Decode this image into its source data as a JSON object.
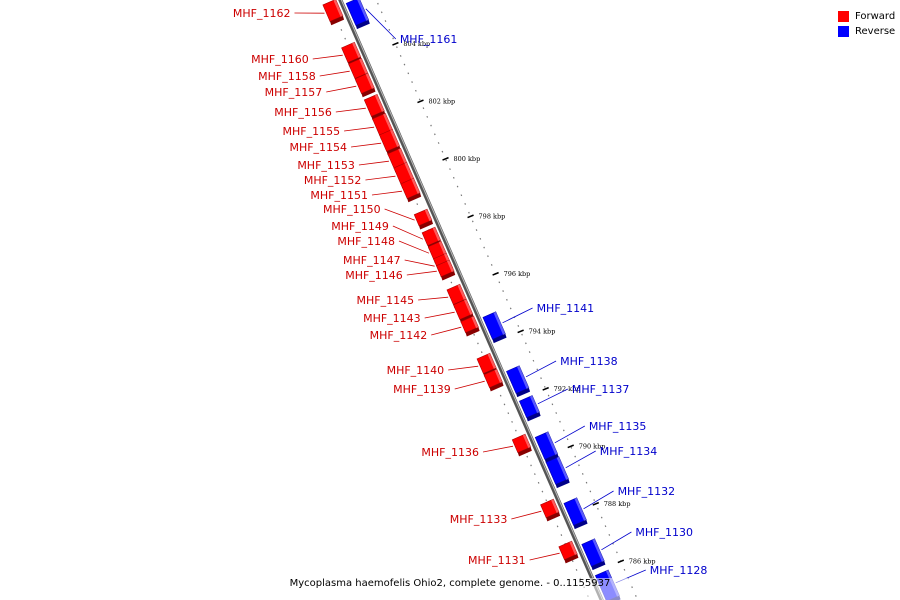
{
  "legend": {
    "forward": {
      "label": "Forward",
      "color": "#ff0000"
    },
    "reverse": {
      "label": "Reverse",
      "color": "#0000ff"
    }
  },
  "caption": "Mycoplasma haemofelis Ohio2, complete genome. - 0..1155937",
  "label_colors": {
    "forward": "#cc0000",
    "reverse": "#0000cc"
  },
  "ruler": {
    "ticks": [
      {
        "kbp": 804,
        "label": "804 kbp"
      },
      {
        "kbp": 802,
        "label": "802 kbp"
      },
      {
        "kbp": 800,
        "label": "800 kbp"
      },
      {
        "kbp": 798,
        "label": "798 kbp"
      },
      {
        "kbp": 796,
        "label": "796 kbp"
      },
      {
        "kbp": 794,
        "label": "794 kbp"
      },
      {
        "kbp": 792,
        "label": "792 kbp"
      },
      {
        "kbp": 790,
        "label": "790 kbp"
      },
      {
        "kbp": 788,
        "label": "788 kbp"
      },
      {
        "kbp": 786,
        "label": "786 kbp"
      }
    ]
  },
  "genes": [
    {
      "id": "MHF_1162",
      "strand": "forward"
    },
    {
      "id": "MHF_1161",
      "strand": "reverse"
    },
    {
      "id": "MHF_1160",
      "strand": "forward"
    },
    {
      "id": "MHF_1158",
      "strand": "forward"
    },
    {
      "id": "MHF_1157",
      "strand": "forward"
    },
    {
      "id": "MHF_1156",
      "strand": "forward"
    },
    {
      "id": "MHF_1155",
      "strand": "forward"
    },
    {
      "id": "MHF_1154",
      "strand": "forward"
    },
    {
      "id": "MHF_1153",
      "strand": "forward"
    },
    {
      "id": "MHF_1152",
      "strand": "forward"
    },
    {
      "id": "MHF_1151",
      "strand": "forward"
    },
    {
      "id": "MHF_1150",
      "strand": "forward"
    },
    {
      "id": "MHF_1149",
      "strand": "forward"
    },
    {
      "id": "MHF_1148",
      "strand": "forward"
    },
    {
      "id": "MHF_1147",
      "strand": "forward"
    },
    {
      "id": "MHF_1146",
      "strand": "forward"
    },
    {
      "id": "MHF_1145",
      "strand": "forward"
    },
    {
      "id": "MHF_1143",
      "strand": "forward"
    },
    {
      "id": "MHF_1142",
      "strand": "forward"
    },
    {
      "id": "MHF_1141",
      "strand": "reverse"
    },
    {
      "id": "MHF_1140",
      "strand": "forward"
    },
    {
      "id": "MHF_1139",
      "strand": "forward"
    },
    {
      "id": "MHF_1138",
      "strand": "reverse"
    },
    {
      "id": "MHF_1137",
      "strand": "reverse"
    },
    {
      "id": "MHF_1136",
      "strand": "forward"
    },
    {
      "id": "MHF_1135",
      "strand": "reverse"
    },
    {
      "id": "MHF_1134",
      "strand": "reverse"
    },
    {
      "id": "MHF_1133",
      "strand": "forward"
    },
    {
      "id": "MHF_1132",
      "strand": "reverse"
    },
    {
      "id": "MHF_1131",
      "strand": "forward"
    },
    {
      "id": "MHF_1130",
      "strand": "reverse"
    },
    {
      "id": "MHF_1128",
      "strand": "reverse"
    }
  ]
}
